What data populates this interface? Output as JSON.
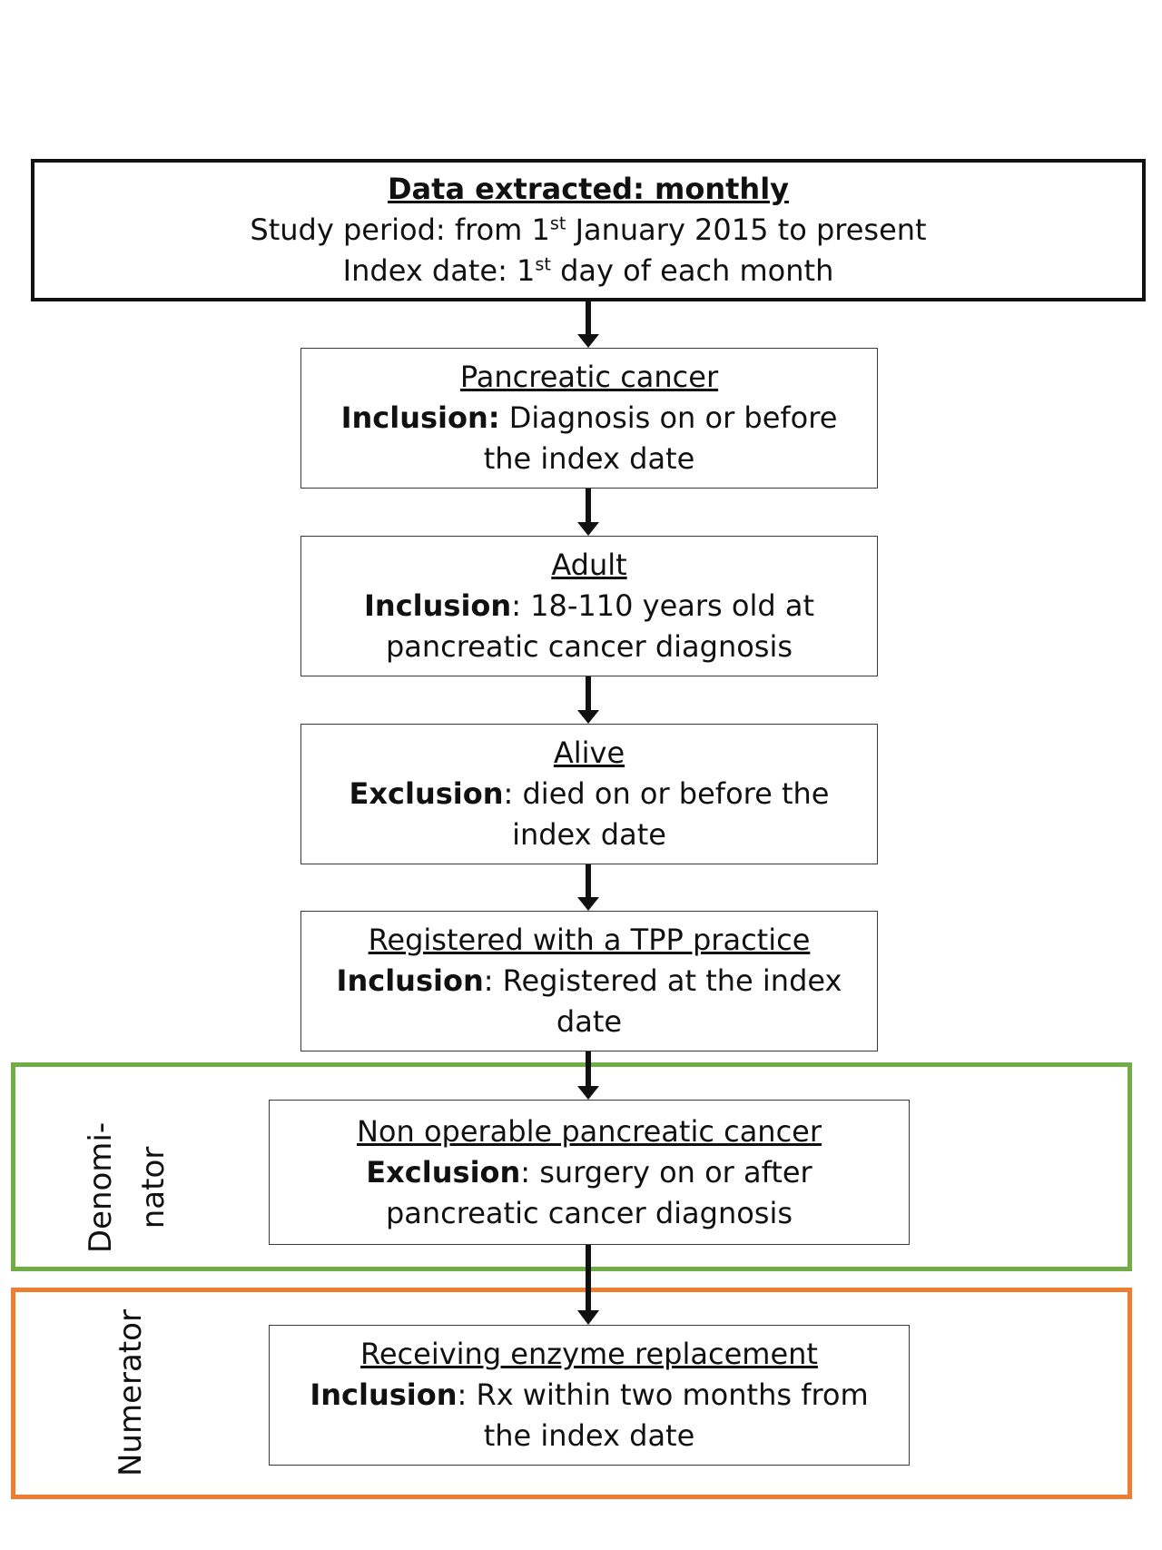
{
  "header": {
    "title": "Data extracted: monthly",
    "line1_pre": "Study period: from 1",
    "line1_sup": "st",
    "line1_post": " January 2015 to present",
    "line2_pre": "Index date: 1",
    "line2_sup": "st",
    "line2_post": " day of each month"
  },
  "steps": [
    {
      "title": "Pancreatic cancer",
      "kind": "Inclusion:",
      "text": " Diagnosis on or before the index date"
    },
    {
      "title": "Adult",
      "kind": "Inclusion",
      "text": ": 18-110 years old at pancreatic cancer diagnosis"
    },
    {
      "title": "Alive",
      "kind": "Exclusion",
      "text": ": died on or before the index date"
    },
    {
      "title": "Registered with a TPP practice",
      "kind": "Inclusion",
      "text": ": Registered at the index date"
    },
    {
      "title": "Non operable pancreatic cancer",
      "kind": "Exclusion",
      "text": ": surgery on or after pancreatic cancer diagnosis"
    },
    {
      "title": "Receiving enzyme replacement",
      "kind": "Inclusion",
      "text": ": Rx within two months from the index date"
    }
  ],
  "groups": {
    "denominator": {
      "line1": "Denomi-",
      "line2": "nator",
      "color": "#70ad47"
    },
    "numerator": {
      "label": "Numerator",
      "color": "#ed7d31"
    }
  }
}
